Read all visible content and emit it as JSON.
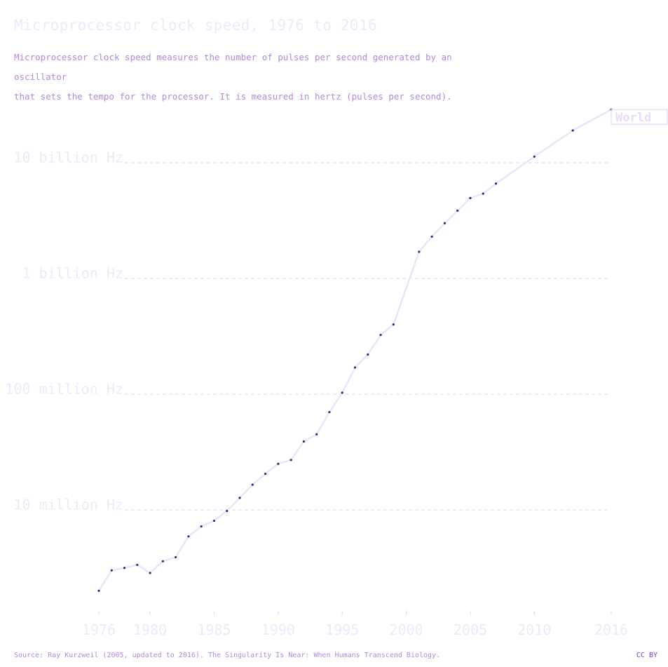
{
  "title": "Microprocessor clock speed, 1976 to 2016",
  "subtitle_lines": [
    "Microprocessor clock speed measures the number of pulses per second generated by an oscillator",
    "that sets the tempo for the processor. It is measured in hertz (pulses per second)."
  ],
  "source": "Source: Ray Kurzweil (2005, updated to 2016). The Singularity Is Near: When Humans Transcend Biology.",
  "license": "CC BY",
  "colors": {
    "line": "#ece4fb",
    "marker": "#3b2a7a",
    "grid": "#e6dcf6",
    "axis_text": "#f0e8fb",
    "label_box": "#eadcf8"
  },
  "chart_data": {
    "type": "line",
    "yscale": "log",
    "ylim": [
      1500000,
      36000000000
    ],
    "xlim": [
      1976,
      2016
    ],
    "y_ticks": [
      10000000,
      100000000,
      1000000000,
      10000000000
    ],
    "y_tick_labels": [
      "10 million Hz",
      "100 million Hz",
      "1 billion Hz",
      "10 billion Hz"
    ],
    "x_ticks": [
      1976,
      1980,
      1985,
      1990,
      1995,
      2000,
      2005,
      2010,
      2016
    ],
    "x_tick_labels": [
      "1976",
      "1980",
      "1985",
      "1990",
      "1995",
      "2000",
      "2005",
      "2010",
      "2016"
    ],
    "series": [
      {
        "name": "World",
        "x": [
          1976,
          1977,
          1978,
          1979,
          1980,
          1981,
          1982,
          1983,
          1984,
          1985,
          1986,
          1987,
          1988,
          1989,
          1990,
          1991,
          1992,
          1993,
          1994,
          1995,
          1996,
          1997,
          1998,
          1999,
          2001,
          2002,
          2003,
          2004,
          2005,
          2006,
          2007,
          2010,
          2013,
          2016
        ],
        "values": [
          2000000,
          3000000,
          3150000,
          3350000,
          2850000,
          3600000,
          3900000,
          5900000,
          7200000,
          8050000,
          9800000,
          12700000,
          16500000,
          20500000,
          25000000,
          27000000,
          39000000,
          45000000,
          70000000,
          103000000,
          170000000,
          220000000,
          325000000,
          400000000,
          1700000000,
          2300000000,
          3000000000,
          3850000000,
          4950000000,
          5400000000,
          6600000000,
          11300000000,
          19000000000,
          28800000000
        ]
      }
    ]
  }
}
